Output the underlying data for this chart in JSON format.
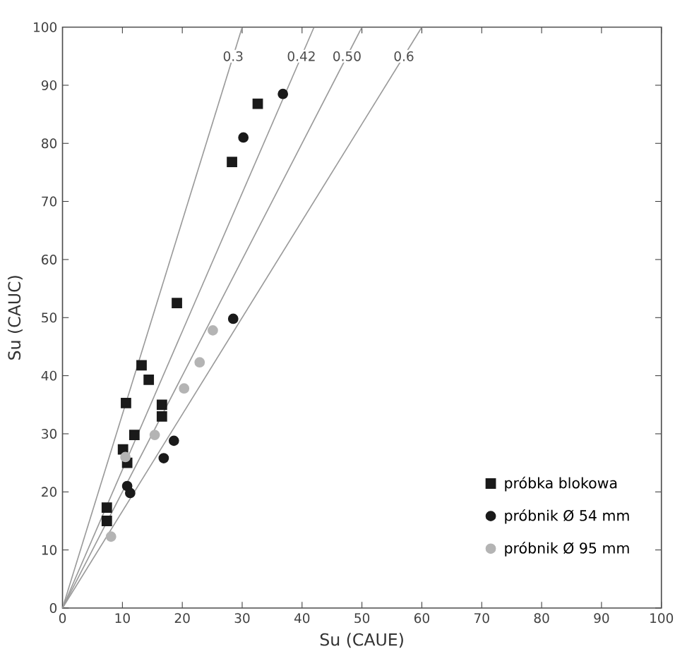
{
  "chart_data": {
    "type": "scatter",
    "xlabel": "Su (CAUE)",
    "ylabel": "Su (CAUC)",
    "xlim": [
      0,
      100
    ],
    "ylim": [
      0,
      100
    ],
    "xticks": [
      0,
      10,
      20,
      30,
      40,
      50,
      60,
      70,
      80,
      90,
      100
    ],
    "yticks": [
      0,
      10,
      20,
      30,
      40,
      50,
      60,
      70,
      80,
      90,
      100
    ],
    "legend": "bottom right",
    "series": [
      {
        "name": "próbka blokowa",
        "marker": "square",
        "color": "#1a1a1a",
        "x": [
          32.6,
          28.3,
          19.1,
          13.2,
          14.4,
          10.6,
          16.6,
          16.6,
          12,
          10.1,
          10.8,
          7.4,
          7.4
        ],
        "values": [
          86.8,
          76.8,
          52.5,
          41.8,
          39.3,
          35.3,
          35,
          33,
          29.8,
          27.3,
          25,
          17.3,
          15
        ]
      },
      {
        "name": "próbnik Ø 54 mm",
        "marker": "circle",
        "color": "#1a1a1a",
        "x": [
          36.8,
          30.2,
          28.5,
          18.6,
          16.9,
          10.8,
          11.3
        ],
        "values": [
          88.5,
          81,
          49.8,
          28.8,
          25.8,
          21,
          19.8
        ]
      },
      {
        "name": "próbnik Ø 95 mm",
        "marker": "circle",
        "color": "#b4b4b4",
        "x": [
          25.1,
          22.9,
          20.3,
          15.4,
          10.5,
          8.1
        ],
        "values": [
          47.8,
          42.3,
          37.8,
          29.8,
          26,
          12.3
        ]
      },
      {
        "name": "0.3",
        "type": "line",
        "color": "#9a9a9a",
        "x": [
          0,
          30
        ],
        "values": [
          0,
          100
        ]
      },
      {
        "name": "0.42",
        "type": "line",
        "color": "#9a9a9a",
        "x": [
          0,
          42
        ],
        "values": [
          0,
          100
        ]
      },
      {
        "name": "0.50",
        "type": "line",
        "color": "#9a9a9a",
        "x": [
          0,
          50
        ],
        "values": [
          0,
          100
        ]
      },
      {
        "name": "0.6",
        "type": "line",
        "color": "#9a9a9a",
        "x": [
          0,
          60
        ],
        "values": [
          0,
          100
        ]
      }
    ]
  }
}
